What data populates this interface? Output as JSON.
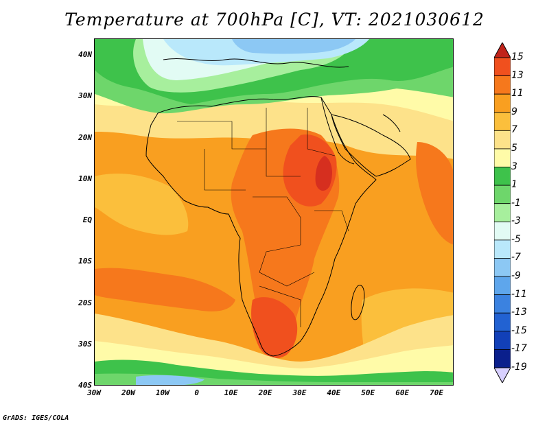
{
  "title": "Temperature at 700hPa [C], VT: 2021030612",
  "footer": "GrADS: IGES/COLA",
  "map": {
    "lat_labels": [
      "40N",
      "30N",
      "20N",
      "10N",
      "EQ",
      "10S",
      "20S",
      "30S",
      "40S"
    ],
    "lon_labels": [
      "30W",
      "20W",
      "10W",
      "0",
      "10E",
      "20E",
      "30E",
      "40E",
      "50E",
      "60E",
      "70E"
    ],
    "lat_values": [
      40,
      30,
      20,
      10,
      0,
      -10,
      -20,
      -30,
      -40
    ],
    "lon_values": [
      -30,
      -20,
      -10,
      0,
      10,
      20,
      30,
      40,
      50,
      60,
      70
    ],
    "extent": {
      "lon_min": -30,
      "lon_max": 75,
      "lat_min": -40,
      "lat_max": 44
    }
  },
  "colorbar": {
    "labels": [
      "15",
      "13",
      "11",
      "9",
      "7",
      "5",
      "3",
      "1",
      "-1",
      "-3",
      "-5",
      "-7",
      "-9",
      "-11",
      "-13",
      "-15",
      "-17",
      "-19"
    ],
    "colors": [
      "#d62f1f",
      "#f0501e",
      "#f6781c",
      "#f99f20",
      "#fbbf3c",
      "#fde28a",
      "#fffba8",
      "#3ec24b",
      "#6ed66b",
      "#a7ef9d",
      "#e2fbf4",
      "#b9e8fb",
      "#8cc8f4",
      "#5ea6ec",
      "#3b82e0",
      "#2262d2",
      "#1240b8",
      "#0a1f8c",
      "#081060"
    ],
    "upper_arrow_color": "#c0231a",
    "lower_arrow_color": "#d8d0ff"
  }
}
